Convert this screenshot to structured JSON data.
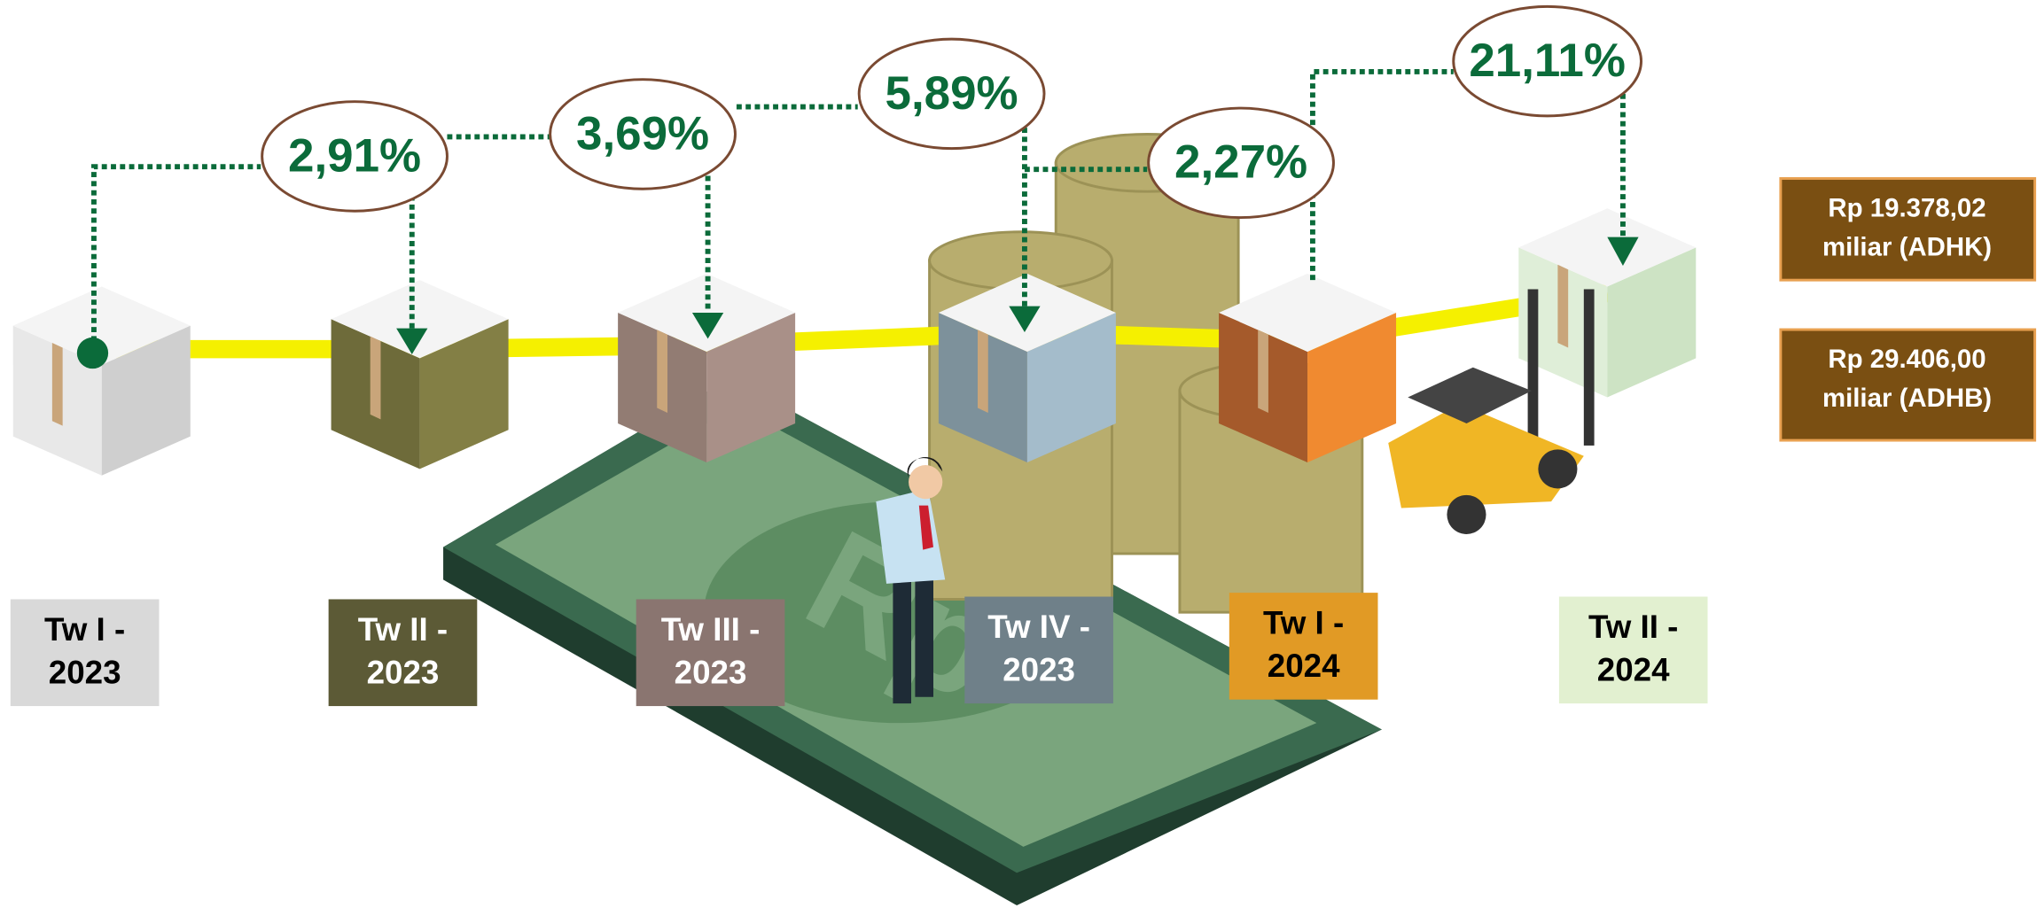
{
  "growth": [
    "2,91%",
    "3,69%",
    "5,89%",
    "2,27%",
    "21,11%"
  ],
  "quarters": [
    [
      "Tw I -",
      "2023"
    ],
    [
      "Tw II -",
      "2023"
    ],
    [
      "Tw III -",
      "2023"
    ],
    [
      "Tw IV -",
      "2023"
    ],
    [
      "Tw I -",
      "2024"
    ],
    [
      "Tw II -",
      "2024"
    ]
  ],
  "values": [
    [
      "Rp 19.378,02",
      "miliar (ADHK)"
    ],
    [
      "Rp 29.406,00",
      "miliar (ADHB)"
    ]
  ]
}
